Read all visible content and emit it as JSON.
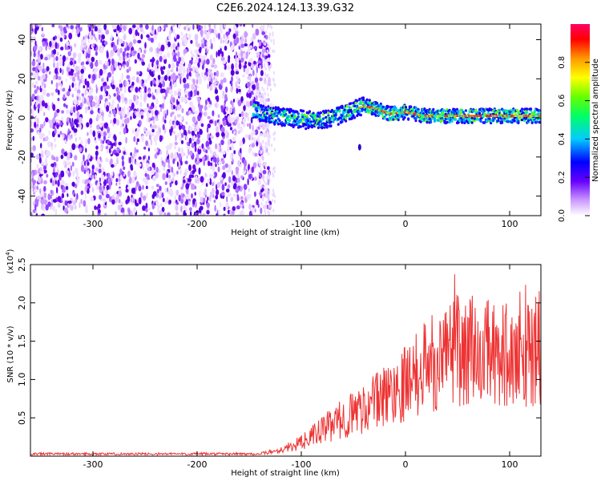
{
  "title": "C2E6.2024.124.13.39.G32",
  "chart_data": [
    {
      "type": "heatmap",
      "xlabel": "Height of straight line (km)",
      "ylabel": "Frequency (Hz)",
      "xlim": [
        -360,
        130
      ],
      "ylim": [
        -50,
        48
      ],
      "xticks": [
        -300,
        -200,
        -100,
        0,
        100
      ],
      "yticks": [
        -40,
        -20,
        0,
        20,
        40
      ],
      "colorbar": {
        "label": "Normalized spectral amplitude",
        "range": [
          0,
          1
        ],
        "ticks": [
          "0.0",
          "0.2",
          "0.4",
          "0.6",
          "0.8"
        ],
        "colormap": "rainbow"
      },
      "signal_track": [
        {
          "x": -145,
          "y": 4
        },
        {
          "x": -135,
          "y": 2
        },
        {
          "x": -125,
          "y": 1
        },
        {
          "x": -110,
          "y": 0
        },
        {
          "x": -95,
          "y": -1
        },
        {
          "x": -80,
          "y": -1
        },
        {
          "x": -65,
          "y": 1
        },
        {
          "x": -50,
          "y": 4
        },
        {
          "x": -40,
          "y": 6
        },
        {
          "x": -30,
          "y": 5
        },
        {
          "x": -15,
          "y": 2
        },
        {
          "x": 0,
          "y": 3
        },
        {
          "x": 20,
          "y": 1
        },
        {
          "x": 50,
          "y": 1
        },
        {
          "x": 80,
          "y": 1
        },
        {
          "x": 110,
          "y": 1
        },
        {
          "x": 130,
          "y": 1
        }
      ],
      "grid": false
    },
    {
      "type": "line",
      "xlabel": "Height of straight line (km)",
      "ylabel": "SNR (10 * v/v)",
      "yscale_label": "(x10",
      "yscale_exponent": "4",
      "yscale_close": ")",
      "xlim": [
        -360,
        130
      ],
      "ylim": [
        0,
        2.5
      ],
      "xticks": [
        -300,
        -200,
        -100,
        0,
        100
      ],
      "yticks": [
        "0.5",
        "1.0",
        "1.5",
        "2.0",
        "2.5"
      ],
      "color": "#ee3333",
      "envelope": [
        {
          "x": -360,
          "y": 0.03
        },
        {
          "x": -140,
          "y": 0.03
        },
        {
          "x": -120,
          "y": 0.08
        },
        {
          "x": -100,
          "y": 0.18
        },
        {
          "x": -80,
          "y": 0.35
        },
        {
          "x": -60,
          "y": 0.5
        },
        {
          "x": -40,
          "y": 0.65
        },
        {
          "x": -20,
          "y": 0.8
        },
        {
          "x": 0,
          "y": 1.0
        },
        {
          "x": 20,
          "y": 1.2
        },
        {
          "x": 40,
          "y": 1.4
        },
        {
          "x": 60,
          "y": 1.45
        },
        {
          "x": 80,
          "y": 1.4
        },
        {
          "x": 100,
          "y": 1.4
        },
        {
          "x": 130,
          "y": 1.4
        }
      ],
      "grid": false
    }
  ]
}
